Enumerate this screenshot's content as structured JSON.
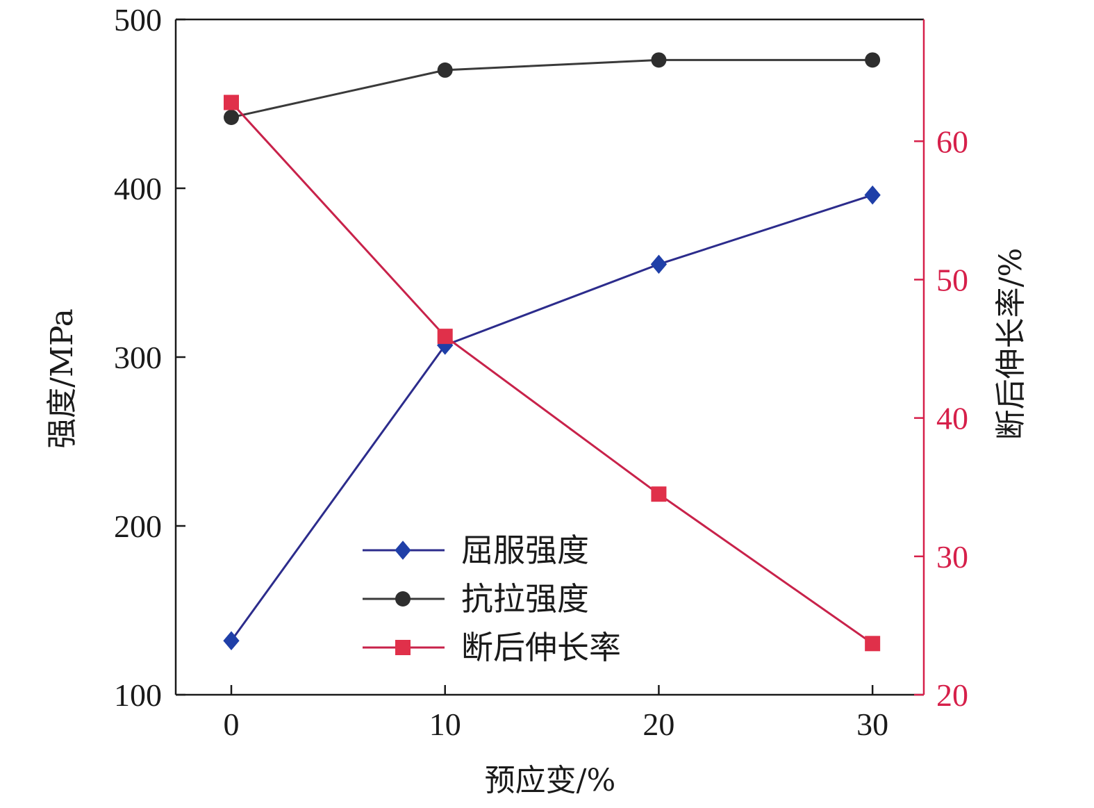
{
  "chart_data": {
    "type": "line",
    "title": "",
    "xlabel": "预应变/%",
    "ylabel_left": "强度/MPa",
    "ylabel_right": "断后伸长率/%",
    "x": [
      0,
      10,
      20,
      30
    ],
    "xlim": [
      -2.6,
      32.4
    ],
    "xticks": [
      0,
      10,
      20,
      30
    ],
    "ylim_left": [
      100,
      500
    ],
    "yticks_left": [
      100,
      200,
      300,
      400,
      500
    ],
    "ylim_right": [
      20,
      68.8
    ],
    "yticks_right": [
      20,
      30,
      40,
      50,
      60
    ],
    "grid": false,
    "legend_position": "lower-center",
    "right_axis_color": "#d6204a",
    "series": [
      {
        "name": "屈服强度",
        "axis": "left",
        "marker": "diamond",
        "line_color": "#2c2c8c",
        "marker_color": "#1f3fa8",
        "values": [
          132,
          307,
          355,
          396
        ]
      },
      {
        "name": "抗拉强度",
        "axis": "left",
        "marker": "circle",
        "line_color": "#3a3a3a",
        "marker_color": "#2e2e2e",
        "values": [
          442,
          470,
          476,
          476
        ]
      },
      {
        "name": "断后伸长率",
        "axis": "right",
        "marker": "square",
        "line_color": "#c8224a",
        "marker_color": "#e0304a",
        "values": [
          62.8,
          45.9,
          34.5,
          23.7
        ]
      }
    ]
  }
}
